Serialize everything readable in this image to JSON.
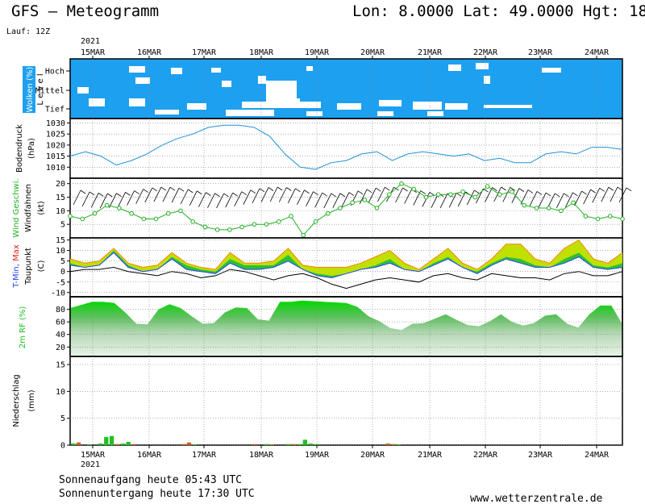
{
  "header": {
    "title": "GFS – Meteogramm",
    "location": "Lon: 8.0000  Lat: 49.0000  Hgt: 18",
    "run": "Lauf: 12Z"
  },
  "footer": {
    "sunrise": "Sonnenaufgang heute 05:43 UTC",
    "sunset": "Sonnenuntergang heute 17:30 UTC",
    "source": "www.wetterzentrale.de"
  },
  "colors": {
    "cloud_blue": "#1ea0f0",
    "pressure_line": "#1e90d8",
    "wind_line": "#20b020",
    "temp_max": "#ff8000",
    "temp_fill": "#30c030",
    "temp_yellow": "#c0e000",
    "temp_min": "#2040ff",
    "dewpoint": "#000000",
    "rh_fill": "#20c020",
    "precip_green": "#20c020",
    "precip_orange": "#d06020",
    "grid": "#808080"
  },
  "chart_data": {
    "type": "meteogram",
    "year": "2021",
    "days": [
      "15MAR",
      "16MAR",
      "17MAR",
      "18MAR",
      "19MAR",
      "20MAR",
      "21MAR",
      "22MAR",
      "23MAR",
      "24MAR"
    ],
    "clouds": {
      "label_top": "Wolken (%)",
      "label_bottom": "L e v e l",
      "levels": [
        "Hoch",
        "Mittel",
        "Tief"
      ]
    },
    "pressure": {
      "label_top": "Bodendruck",
      "label_bottom": "(hPa)",
      "ylim": [
        1005,
        1032
      ],
      "ticks": [
        1010,
        1015,
        1020,
        1025,
        1030
      ],
      "values": [
        1015,
        1017,
        1015,
        1011,
        1013,
        1016,
        1020,
        1023,
        1025,
        1028,
        1029,
        1029,
        1028,
        1024,
        1016,
        1010,
        1009,
        1012,
        1013,
        1016,
        1017,
        1013,
        1016,
        1017,
        1016,
        1015,
        1016,
        1013,
        1014,
        1012,
        1012,
        1016,
        1017,
        1016,
        1019,
        1019,
        1018
      ]
    },
    "wind": {
      "label_top": "Wind Geschwi.",
      "label_bottom": "Windfahnen",
      "unit": "(kt)",
      "ylim": [
        0,
        22
      ],
      "ticks": [
        5,
        10,
        15,
        20
      ],
      "values": [
        8,
        7,
        9,
        12,
        11,
        9,
        7,
        7,
        9,
        10,
        6,
        4,
        3,
        3,
        4,
        5,
        5,
        6,
        8,
        1,
        6,
        9,
        11,
        13,
        14,
        11,
        16,
        20,
        18,
        15,
        16,
        16,
        17,
        15,
        19,
        16,
        17,
        12,
        11,
        11,
        10,
        13,
        8,
        7,
        8,
        7
      ]
    },
    "temperature": {
      "label_top": "T-Min, Max",
      "label_bottom": "Taupunkt",
      "unit": "(C)",
      "ylim": [
        -12,
        16
      ],
      "ticks": [
        -10,
        -5,
        0,
        5,
        10,
        15
      ],
      "max": [
        6,
        4,
        5,
        11,
        4,
        2,
        3,
        9,
        4,
        2,
        1,
        9,
        4,
        4,
        5,
        11,
        3,
        2,
        2,
        2,
        4,
        7,
        10,
        4,
        1,
        6,
        11,
        4,
        1,
        6,
        13,
        13,
        6,
        4,
        11,
        15,
        6,
        4,
        9
      ],
      "base": [
        4,
        2,
        3,
        10,
        3,
        0,
        1,
        7,
        3,
        1,
        0,
        6,
        3,
        3,
        3,
        8,
        1,
        -1,
        -2,
        -1,
        1,
        3,
        6,
        1,
        0,
        4,
        7,
        2,
        0,
        4,
        7,
        6,
        3,
        2,
        6,
        9,
        3,
        2,
        4
      ],
      "min": [
        3,
        2,
        3,
        9,
        2,
        0,
        1,
        6,
        1,
        0,
        -1,
        4,
        1,
        1,
        2,
        5,
        1,
        -2,
        -3,
        -1,
        1,
        2,
        4,
        1,
        0,
        3,
        6,
        2,
        -1,
        3,
        6,
        4,
        2,
        2,
        4,
        7,
        2,
        1,
        2
      ],
      "dewpoint": [
        0,
        1,
        1,
        2,
        0,
        -1,
        -2,
        0,
        -1,
        -3,
        -2,
        1,
        0,
        -2,
        -4,
        -2,
        -1,
        -3,
        -6,
        -8,
        -6,
        -4,
        -3,
        -4,
        -5,
        -2,
        -1,
        -3,
        -4,
        -1,
        -2,
        -3,
        -3,
        -4,
        -1,
        0,
        -2,
        -2,
        0
      ]
    },
    "humidity": {
      "label": "2m RF (%)",
      "ylim": [
        5,
        100
      ],
      "ticks": [
        20,
        40,
        60,
        80
      ],
      "values": [
        82,
        87,
        92,
        92,
        90,
        75,
        57,
        56,
        80,
        88,
        82,
        69,
        57,
        58,
        75,
        83,
        82,
        64,
        62,
        92,
        92,
        94,
        93,
        92,
        91,
        90,
        84,
        69,
        61,
        50,
        47,
        57,
        58,
        65,
        72,
        63,
        55,
        53,
        61,
        72,
        60,
        54,
        58,
        70,
        72,
        57,
        51,
        72,
        86,
        86,
        56
      ]
    },
    "precipitation": {
      "label_top": "Niederschlag",
      "label_bottom": "(mm)",
      "ylim": [
        0,
        16.5
      ],
      "ticks": [
        0,
        5,
        10,
        15
      ],
      "bars": [
        {
          "i": 0,
          "v": 0.3,
          "c": "g"
        },
        {
          "i": 1,
          "v": 0.5,
          "c": "o"
        },
        {
          "i": 3,
          "v": 0.1,
          "c": "g"
        },
        {
          "i": 5,
          "v": 0.3,
          "c": "g"
        },
        {
          "i": 6,
          "v": 1.5,
          "c": "g"
        },
        {
          "i": 7,
          "v": 1.7,
          "c": "g"
        },
        {
          "i": 8,
          "v": 0.2,
          "c": "o"
        },
        {
          "i": 9,
          "v": 0.3,
          "c": "g"
        },
        {
          "i": 10,
          "v": 0.6,
          "c": "g"
        },
        {
          "i": 11,
          "v": 0.2,
          "c": "o"
        },
        {
          "i": 20,
          "v": 0.2,
          "c": "o"
        },
        {
          "i": 21,
          "v": 0.5,
          "c": "o"
        },
        {
          "i": 22,
          "v": 0.1,
          "c": "g"
        },
        {
          "i": 33,
          "v": 0.2,
          "c": "o"
        },
        {
          "i": 35,
          "v": 0.2,
          "c": "g"
        },
        {
          "i": 36,
          "v": 0.1,
          "c": "o"
        },
        {
          "i": 39,
          "v": 0.2,
          "c": "g"
        },
        {
          "i": 40,
          "v": 0.2,
          "c": "o"
        },
        {
          "i": 41,
          "v": 0.2,
          "c": "g"
        },
        {
          "i": 42,
          "v": 1.0,
          "c": "g"
        },
        {
          "i": 43,
          "v": 0.3,
          "c": "g"
        },
        {
          "i": 44,
          "v": 0.2,
          "c": "g"
        },
        {
          "i": 57,
          "v": 0.3,
          "c": "o"
        },
        {
          "i": 58,
          "v": 0.2,
          "c": "o"
        },
        {
          "i": 59,
          "v": 0.1,
          "c": "g"
        }
      ]
    }
  }
}
